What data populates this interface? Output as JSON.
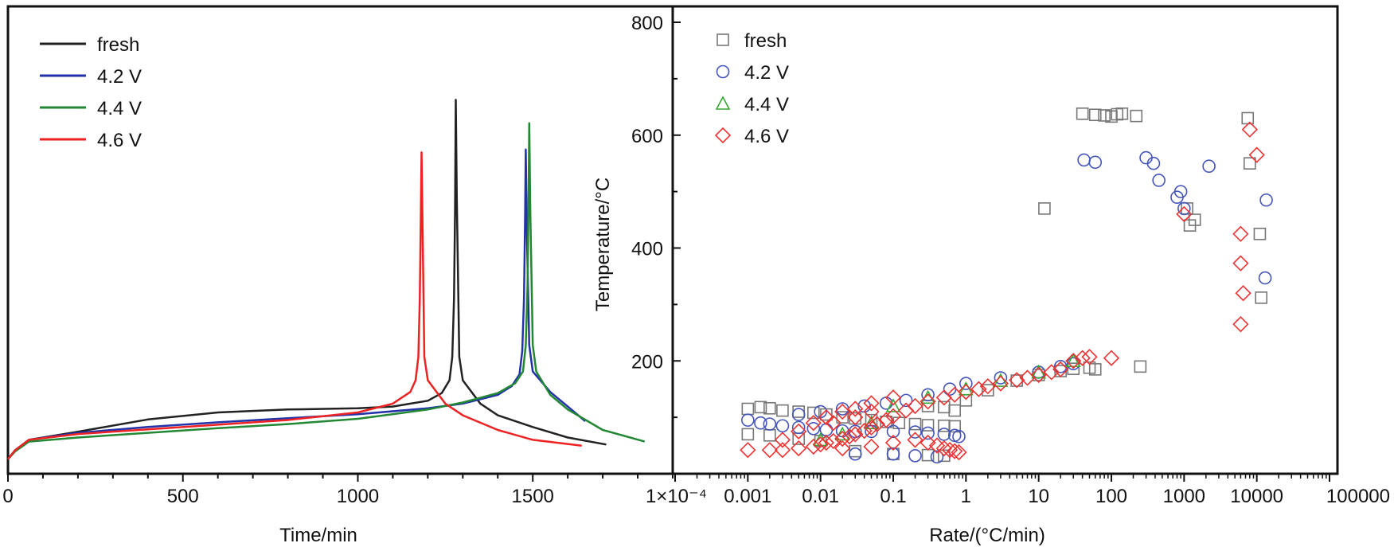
{
  "chart_data": [
    {
      "type": "line",
      "title": "",
      "xlabel": "Time/min",
      "ylabel": "",
      "xlim": [
        0,
        1900
      ],
      "ylim": [
        0,
        800
      ],
      "x_ticks": [
        0,
        500,
        1000,
        1500
      ],
      "legend": "top-left",
      "series": [
        {
          "name": "fresh",
          "color": "#222222",
          "x": [
            0,
            20,
            60,
            200,
            400,
            600,
            800,
            1000,
            1100,
            1200,
            1240,
            1262,
            1270,
            1275,
            1278,
            1280,
            1283,
            1290,
            1300,
            1350,
            1400,
            1500,
            1600,
            1710
          ],
          "y": [
            25,
            40,
            58,
            72,
            93,
            105,
            110,
            112,
            115,
            125,
            138,
            160,
            200,
            300,
            450,
            640,
            470,
            200,
            160,
            120,
            100,
            80,
            62,
            50
          ]
        },
        {
          "name": "4.2 V",
          "color": "#2233aa",
          "x": [
            0,
            20,
            60,
            200,
            400,
            600,
            800,
            1000,
            1200,
            1300,
            1400,
            1440,
            1462,
            1470,
            1475,
            1478,
            1480,
            1483,
            1490,
            1500,
            1550,
            1600,
            1650
          ],
          "y": [
            25,
            40,
            58,
            70,
            80,
            88,
            95,
            102,
            112,
            120,
            135,
            150,
            170,
            210,
            300,
            430,
            555,
            420,
            220,
            175,
            140,
            115,
            90
          ]
        },
        {
          "name": "4.4 V",
          "color": "#228833",
          "x": [
            0,
            20,
            60,
            200,
            400,
            600,
            800,
            1000,
            1200,
            1300,
            1400,
            1450,
            1472,
            1480,
            1485,
            1488,
            1490,
            1493,
            1500,
            1510,
            1550,
            1600,
            1700,
            1820
          ],
          "y": [
            25,
            38,
            55,
            62,
            70,
            78,
            85,
            94,
            110,
            122,
            138,
            155,
            175,
            220,
            320,
            460,
            600,
            450,
            220,
            175,
            135,
            110,
            75,
            55
          ]
        },
        {
          "name": "4.6 V",
          "color": "#ee2222",
          "x": [
            0,
            20,
            60,
            200,
            400,
            600,
            800,
            1000,
            1100,
            1150,
            1165,
            1173,
            1177,
            1180,
            1182,
            1185,
            1190,
            1200,
            1250,
            1300,
            1400,
            1500,
            1640
          ],
          "y": [
            25,
            40,
            58,
            68,
            76,
            84,
            92,
            105,
            120,
            140,
            160,
            200,
            300,
            440,
            550,
            420,
            200,
            160,
            120,
            100,
            75,
            58,
            48
          ]
        }
      ]
    },
    {
      "type": "scatter",
      "title": "",
      "xlabel": "Rate/(°C/min)",
      "ylabel": "Temperature/°C",
      "xscale": "log",
      "xlim": [
        0.0001,
        100000
      ],
      "ylim": [
        0,
        800
      ],
      "y_ticks": [
        200,
        400,
        600,
        800
      ],
      "x_tick_labels": [
        "1×10⁻⁴",
        "0.001",
        "0.01",
        "0.1",
        "1",
        "10",
        "100",
        "1000",
        "10000",
        "100000"
      ],
      "legend": "top-left",
      "series": [
        {
          "name": "fresh",
          "marker": "square",
          "color": "#777777",
          "points": [
            [
              0.001,
              115
            ],
            [
              0.0015,
              118
            ],
            [
              0.002,
              116
            ],
            [
              0.003,
              112
            ],
            [
              0.005,
              110
            ],
            [
              0.008,
              108
            ],
            [
              0.012,
              105
            ],
            [
              0.02,
              100
            ],
            [
              0.03,
              98
            ],
            [
              0.05,
              95
            ],
            [
              0.08,
              92
            ],
            [
              0.12,
              90
            ],
            [
              0.2,
              88
            ],
            [
              0.3,
              86
            ],
            [
              0.5,
              85
            ],
            [
              0.7,
              84
            ],
            [
              0.001,
              70
            ],
            [
              0.002,
              68
            ],
            [
              0.005,
              62
            ],
            [
              0.01,
              58
            ],
            [
              0.03,
              40
            ],
            [
              0.1,
              35
            ],
            [
              0.3,
              33
            ],
            [
              0.5,
              32
            ],
            [
              0.3,
              120
            ],
            [
              0.5,
              118
            ],
            [
              0.7,
              112
            ],
            [
              1,
              130
            ],
            [
              2,
              148
            ],
            [
              5,
              165
            ],
            [
              10,
              175
            ],
            [
              20,
              182
            ],
            [
              30,
              186
            ],
            [
              50,
              188
            ],
            [
              60,
              185
            ],
            [
              250,
              190
            ],
            [
              12,
              470
            ],
            [
              40,
              638
            ],
            [
              60,
              636
            ],
            [
              80,
              635
            ],
            [
              100,
              633
            ],
            [
              120,
              637
            ],
            [
              140,
              638
            ],
            [
              220,
              634
            ],
            [
              1100,
              470
            ],
            [
              1200,
              440
            ],
            [
              1400,
              450
            ],
            [
              7500,
              630
            ],
            [
              8000,
              550
            ],
            [
              11000,
              425
            ],
            [
              11500,
              312
            ]
          ]
        },
        {
          "name": "4.2 V",
          "marker": "circle",
          "color": "#4455bb",
          "points": [
            [
              0.001,
              95
            ],
            [
              0.0015,
              90
            ],
            [
              0.002,
              88
            ],
            [
              0.003,
              85
            ],
            [
              0.005,
              82
            ],
            [
              0.008,
              80
            ],
            [
              0.012,
              78
            ],
            [
              0.02,
              76
            ],
            [
              0.03,
              75
            ],
            [
              0.05,
              75
            ],
            [
              0.1,
              75
            ],
            [
              0.2,
              74
            ],
            [
              0.3,
              72
            ],
            [
              0.5,
              70
            ],
            [
              0.7,
              68
            ],
            [
              0.8,
              66
            ],
            [
              0.005,
              105
            ],
            [
              0.01,
              110
            ],
            [
              0.02,
              115
            ],
            [
              0.04,
              120
            ],
            [
              0.08,
              125
            ],
            [
              0.15,
              130
            ],
            [
              0.3,
              140
            ],
            [
              0.6,
              150
            ],
            [
              1,
              160
            ],
            [
              3,
              170
            ],
            [
              10,
              180
            ],
            [
              20,
              190
            ],
            [
              30,
              195
            ],
            [
              0.1,
              35
            ],
            [
              0.2,
              32
            ],
            [
              0.4,
              30
            ],
            [
              0.03,
              35
            ],
            [
              42,
              556
            ],
            [
              60,
              552
            ],
            [
              300,
              560
            ],
            [
              380,
              550
            ],
            [
              450,
              520
            ],
            [
              800,
              490
            ],
            [
              900,
              500
            ],
            [
              1000,
              470
            ],
            [
              2200,
              545
            ],
            [
              13500,
              485
            ],
            [
              13000,
              347
            ]
          ]
        },
        {
          "name": "4.4 V",
          "marker": "triangle",
          "color": "#33aa33",
          "points": [
            [
              0.01,
              60
            ],
            [
              0.02,
              70
            ],
            [
              0.05,
              90
            ],
            [
              0.1,
              120
            ],
            [
              0.3,
              135
            ],
            [
              1,
              150
            ],
            [
              3,
              165
            ],
            [
              10,
              180
            ],
            [
              30,
              200
            ]
          ]
        },
        {
          "name": "4.6 V",
          "marker": "diamond",
          "color": "#ee3333",
          "points": [
            [
              0.001,
              42
            ],
            [
              0.002,
              42
            ],
            [
              0.003,
              42
            ],
            [
              0.005,
              45
            ],
            [
              0.008,
              48
            ],
            [
              0.01,
              52
            ],
            [
              0.012,
              55
            ],
            [
              0.015,
              58
            ],
            [
              0.02,
              62
            ],
            [
              0.025,
              66
            ],
            [
              0.03,
              70
            ],
            [
              0.04,
              76
            ],
            [
              0.05,
              82
            ],
            [
              0.06,
              88
            ],
            [
              0.08,
              95
            ],
            [
              0.1,
              102
            ],
            [
              0.15,
              112
            ],
            [
              0.2,
              120
            ],
            [
              0.3,
              128
            ],
            [
              0.5,
              135
            ],
            [
              0.7,
              140
            ],
            [
              1,
              145
            ],
            [
              1.5,
              150
            ],
            [
              2,
              155
            ],
            [
              3,
              160
            ],
            [
              5,
              166
            ],
            [
              7,
              170
            ],
            [
              10,
              175
            ],
            [
              15,
              180
            ],
            [
              20,
              185
            ],
            [
              30,
              200
            ],
            [
              40,
              205
            ],
            [
              50,
              207
            ],
            [
              100,
              205
            ],
            [
              0.003,
              60
            ],
            [
              0.005,
              75
            ],
            [
              0.008,
              90
            ],
            [
              0.012,
              100
            ],
            [
              0.02,
              110
            ],
            [
              0.03,
              115
            ],
            [
              0.05,
              125
            ],
            [
              0.1,
              135
            ],
            [
              0.02,
              45
            ],
            [
              0.05,
              48
            ],
            [
              0.1,
              55
            ],
            [
              0.2,
              60
            ],
            [
              0.3,
              55
            ],
            [
              0.4,
              50
            ],
            [
              0.5,
              45
            ],
            [
              0.6,
              42
            ],
            [
              0.7,
              40
            ],
            [
              0.8,
              38
            ],
            [
              0.015,
              90
            ],
            [
              0.03,
              100
            ],
            [
              0.05,
              110
            ],
            [
              1000,
              460
            ],
            [
              8000,
              610
            ],
            [
              10000,
              565
            ],
            [
              6000,
              425
            ],
            [
              6000,
              373
            ],
            [
              6500,
              320
            ],
            [
              6000,
              265
            ]
          ]
        }
      ]
    }
  ]
}
